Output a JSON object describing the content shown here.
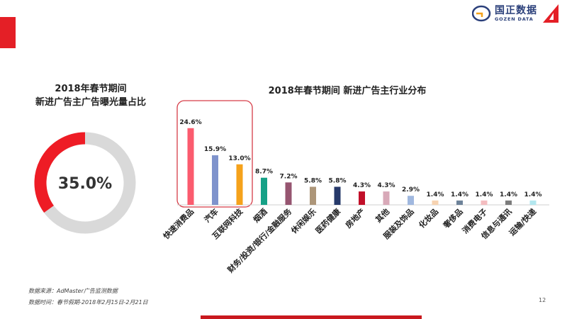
{
  "logo": {
    "name_cn": "国正数据",
    "name_en": "GOZEN DATA"
  },
  "donut": {
    "title_line1": "2018年春节期间",
    "title_line2": "新进广告主广告曝光量占比",
    "value": 35.0,
    "label": "35.0%",
    "fill_color": "#ee1c25",
    "track_color": "#d9d9d9"
  },
  "chart_data": {
    "type": "bar",
    "title": "2018年春节期间   新进广告主行业分布",
    "xlabel": "",
    "ylabel": "",
    "ylim": [
      0,
      30
    ],
    "categories": [
      "快速消费品",
      "汽车",
      "互联网科技",
      "烟酒",
      "财务/投资/银行/金融服务",
      "休闲娱乐",
      "医药健康",
      "房地产",
      "其他",
      "服装及饰品",
      "化妆品",
      "奢侈品",
      "消费电子",
      "信息与通讯",
      "运输/快递"
    ],
    "values": [
      24.6,
      15.9,
      13.0,
      8.7,
      7.2,
      5.8,
      5.8,
      4.3,
      4.3,
      2.9,
      1.4,
      1.4,
      1.4,
      1.4,
      1.4
    ],
    "value_labels": [
      "24.6%",
      "15.9%",
      "13.0%",
      "8.7%",
      "7.2%",
      "5.8%",
      "5.8%",
      "4.3%",
      "4.3%",
      "2.9%",
      "1.4%",
      "1.4%",
      "1.4%",
      "1.4%",
      "1.4%"
    ],
    "colors": [
      "#fb5b6e",
      "#7f93cc",
      "#f5a21b",
      "#16a187",
      "#965570",
      "#ad9679",
      "#26396a",
      "#c10f29",
      "#d8a9b8",
      "#a0b8df",
      "#f7d3b1",
      "#6d8299",
      "#f4bdc0",
      "#7c7c7c",
      "#b3e7ef"
    ],
    "highlight_box_color": "#d63c47",
    "grid": false,
    "legend": "none"
  },
  "footnotes": {
    "source": "数据来源：AdMaster广告监测数据",
    "period": "数据时间：春节假期-2018年2月15日-2月21日"
  },
  "page_number": "12"
}
